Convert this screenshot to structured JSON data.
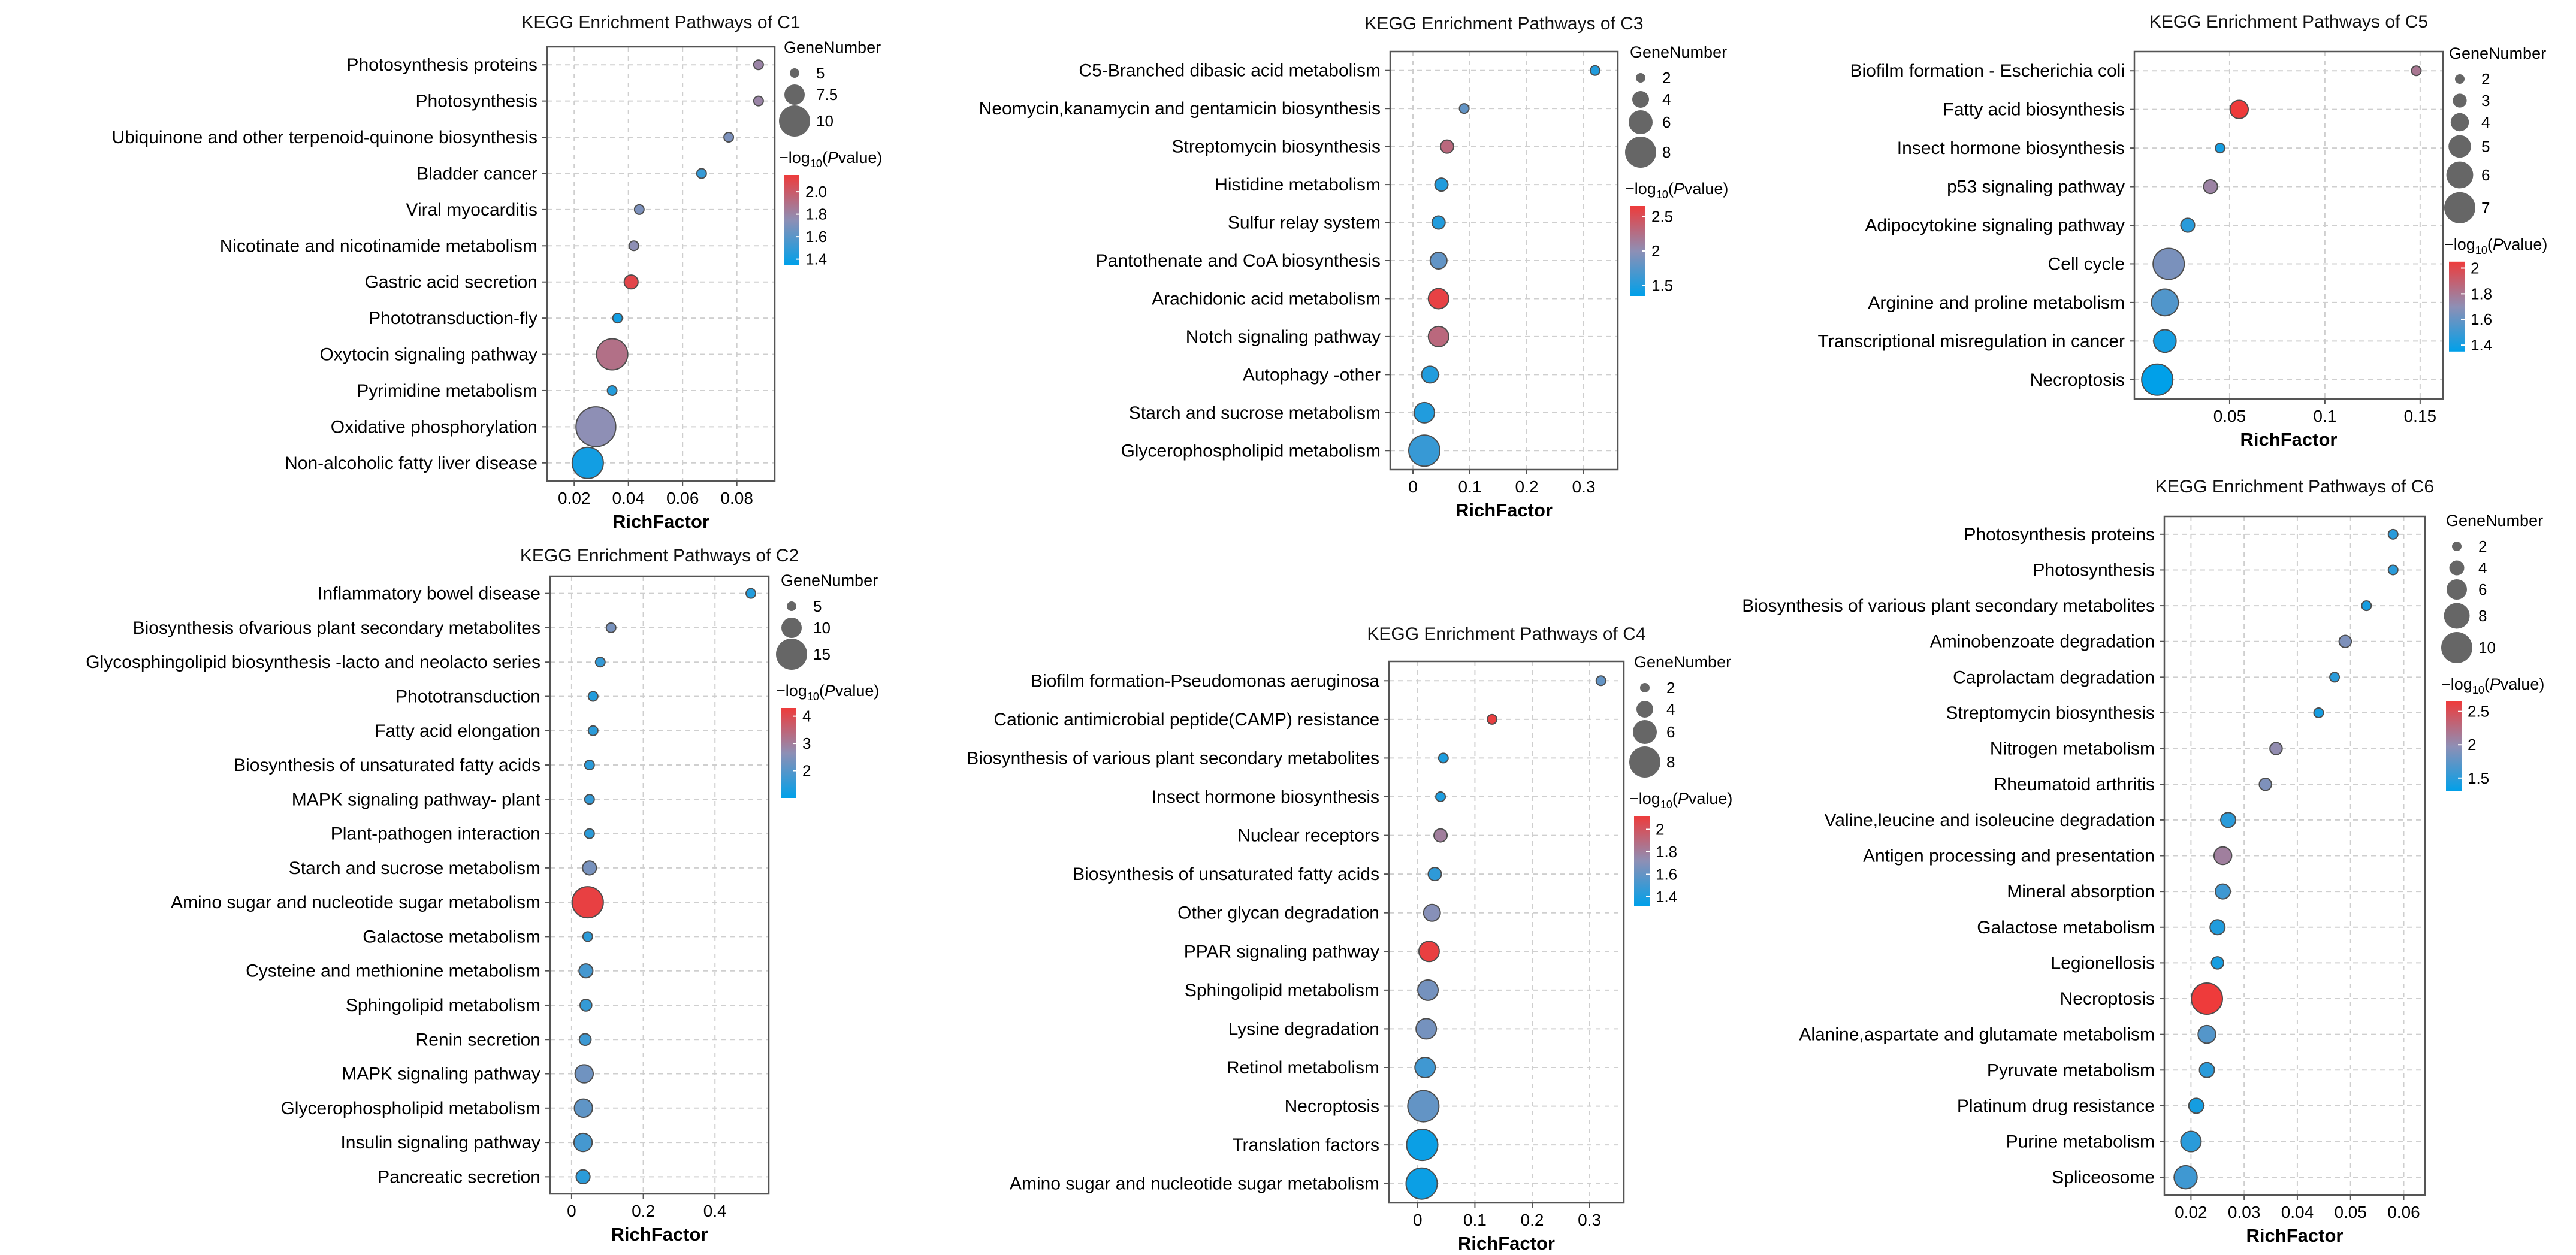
{
  "colors": {
    "low": "#00a0e9",
    "mid": "#8e8fb5",
    "high": "#ee3b3b",
    "size_legend": "#666666"
  },
  "legend_labels": {
    "size_title": "GeneNumber",
    "color_title_prefix": "−log",
    "color_title_sub": "10",
    "color_title_open": "(",
    "color_title_italic": "P",
    "color_title_rest": "value)"
  },
  "chart_data": [
    {
      "id": "C1",
      "type": "scatter",
      "title": "KEGG Enrichment Pathways of C1",
      "xlabel": "RichFactor",
      "xlim": [
        0.01,
        0.094
      ],
      "xticks": [
        0.02,
        0.04,
        0.06,
        0.08
      ],
      "xtick_labels": [
        "0.02",
        "0.04",
        "0.06",
        "0.08"
      ],
      "size_legend": {
        "values": [
          5,
          7.5,
          10
        ],
        "labels": [
          "5",
          "7.5",
          "10"
        ]
      },
      "color_legend": {
        "min": 1.35,
        "max": 2.15,
        "ticks": [
          2.0,
          1.8,
          1.6,
          1.4
        ],
        "labels": [
          "2.0",
          "1.8",
          "1.6",
          "1.4"
        ]
      },
      "pathways": [
        {
          "name": "Photosynthesis proteins",
          "rich": 0.088,
          "genes": 2,
          "logp": 1.8
        },
        {
          "name": "Photosynthesis",
          "rich": 0.088,
          "genes": 2,
          "logp": 1.8
        },
        {
          "name": "Ubiquinone and other terpenoid-quinone biosynthesis",
          "rich": 0.077,
          "genes": 2,
          "logp": 1.7
        },
        {
          "name": "Bladder cancer",
          "rich": 0.067,
          "genes": 2,
          "logp": 1.5
        },
        {
          "name": "Viral myocarditis",
          "rich": 0.044,
          "genes": 4,
          "logp": 1.7
        },
        {
          "name": "Nicotinate and nicotinamide metabolism",
          "rich": 0.042,
          "genes": 4,
          "logp": 1.75
        },
        {
          "name": "Gastric acid secretion",
          "rich": 0.041,
          "genes": 6,
          "logp": 2.1
        },
        {
          "name": "Phototransduction-fly",
          "rich": 0.036,
          "genes": 5,
          "logp": 1.4
        },
        {
          "name": "Oxytocin signaling pathway",
          "rich": 0.034,
          "genes": 10,
          "logp": 1.9
        },
        {
          "name": "Pyrimidine metabolism",
          "rich": 0.034,
          "genes": 5,
          "logp": 1.45
        },
        {
          "name": "Oxidative phosphorylation",
          "rich": 0.028,
          "genes": 12,
          "logp": 1.75
        },
        {
          "name": "Non-alcoholic fatty liver disease",
          "rich": 0.025,
          "genes": 10,
          "logp": 1.4
        }
      ]
    },
    {
      "id": "C2",
      "type": "scatter",
      "title": "KEGG Enrichment Pathways of C2",
      "xlabel": "RichFactor",
      "xlim": [
        -0.06,
        0.55
      ],
      "xticks": [
        0,
        0.2,
        0.4
      ],
      "xtick_labels": [
        "0",
        "0.2",
        "0.4"
      ],
      "size_legend": {
        "values": [
          5,
          10,
          15
        ],
        "labels": [
          "5",
          "10",
          "15"
        ]
      },
      "color_legend": {
        "min": 1.0,
        "max": 4.3,
        "ticks": [
          4,
          3,
          2
        ],
        "labels": [
          "4",
          "3",
          "2"
        ]
      },
      "pathways": [
        {
          "name": "Inflammatory bowel disease",
          "rich": 0.5,
          "genes": 2,
          "logp": 1.4
        },
        {
          "name": "Biosynthesis ofvarious plant secondary metabolites",
          "rich": 0.11,
          "genes": 3,
          "logp": 2.4
        },
        {
          "name": "Glycosphingolipid biosynthesis -lacto and neolacto series",
          "rich": 0.08,
          "genes": 2,
          "logp": 1.6
        },
        {
          "name": "Phototransduction",
          "rich": 0.06,
          "genes": 3,
          "logp": 1.4
        },
        {
          "name": "Fatty acid elongation",
          "rich": 0.06,
          "genes": 3,
          "logp": 1.5
        },
        {
          "name": "Biosynthesis of unsaturated fatty acids",
          "rich": 0.05,
          "genes": 4,
          "logp": 1.5
        },
        {
          "name": "MAPK signaling pathway- plant",
          "rich": 0.05,
          "genes": 4,
          "logp": 1.6
        },
        {
          "name": "Plant-pathogen interaction",
          "rich": 0.05,
          "genes": 4,
          "logp": 1.5
        },
        {
          "name": "Starch and sucrose metabolism",
          "rich": 0.05,
          "genes": 7,
          "logp": 2.4
        },
        {
          "name": "Amino sugar and nucleotide sugar metabolism",
          "rich": 0.045,
          "genes": 15,
          "logp": 4.2
        },
        {
          "name": "Galactose metabolism",
          "rich": 0.045,
          "genes": 5,
          "logp": 1.5
        },
        {
          "name": "Cysteine and methionine metabolism",
          "rich": 0.04,
          "genes": 7,
          "logp": 1.8
        },
        {
          "name": "Sphingolipid metabolism",
          "rich": 0.04,
          "genes": 6,
          "logp": 1.6
        },
        {
          "name": "Renin secretion",
          "rich": 0.038,
          "genes": 6,
          "logp": 1.7
        },
        {
          "name": "MAPK signaling pathway",
          "rich": 0.035,
          "genes": 9,
          "logp": 2.3
        },
        {
          "name": "Glycerophospholipid metabolism",
          "rich": 0.033,
          "genes": 9,
          "logp": 2.1
        },
        {
          "name": "Insulin signaling pathway",
          "rich": 0.032,
          "genes": 9,
          "logp": 1.8
        },
        {
          "name": "Pancreatic secretion",
          "rich": 0.032,
          "genes": 7,
          "logp": 1.5
        }
      ]
    },
    {
      "id": "C3",
      "type": "scatter",
      "title": "KEGG Enrichment Pathways of C3",
      "xlabel": "RichFactor",
      "xlim": [
        -0.04,
        0.36
      ],
      "xticks": [
        0,
        0.1,
        0.2,
        0.3
      ],
      "xtick_labels": [
        "0",
        "0.1",
        "0.2",
        "0.3"
      ],
      "size_legend": {
        "values": [
          2,
          4,
          6,
          8
        ],
        "labels": [
          "2",
          "4",
          "6",
          "8"
        ]
      },
      "color_legend": {
        "min": 1.35,
        "max": 2.65,
        "ticks": [
          2.5,
          2,
          1.5
        ],
        "labels": [
          "2.5",
          "2",
          "1.5"
        ]
      },
      "pathways": [
        {
          "name": "C5-Branched dibasic acid metabolism",
          "rich": 0.32,
          "genes": 2,
          "logp": 1.5
        },
        {
          "name": "Neomycin,kanamycin and gentamicin biosynthesis",
          "rich": 0.09,
          "genes": 2,
          "logp": 1.8
        },
        {
          "name": "Streptomycin biosynthesis",
          "rich": 0.06,
          "genes": 3,
          "logp": 2.3
        },
        {
          "name": "Histidine metabolism",
          "rich": 0.05,
          "genes": 3,
          "logp": 1.5
        },
        {
          "name": "Sulfur relay system",
          "rich": 0.045,
          "genes": 3,
          "logp": 1.5
        },
        {
          "name": "Pantothenate and CoA biosynthesis",
          "rich": 0.045,
          "genes": 4,
          "logp": 1.8
        },
        {
          "name": "Arachidonic acid metabolism",
          "rich": 0.045,
          "genes": 5,
          "logp": 2.6
        },
        {
          "name": "Notch signaling pathway",
          "rich": 0.045,
          "genes": 5,
          "logp": 2.3
        },
        {
          "name": "Autophagy -other",
          "rich": 0.03,
          "genes": 4,
          "logp": 1.5
        },
        {
          "name": "Starch and sucrose metabolism",
          "rich": 0.02,
          "genes": 5,
          "logp": 1.5
        },
        {
          "name": "Glycerophospholipid metabolism",
          "rich": 0.02,
          "genes": 8,
          "logp": 1.6
        }
      ]
    },
    {
      "id": "C4",
      "type": "scatter",
      "title": "KEGG Enrichment Pathways of C4",
      "xlabel": "RichFactor",
      "xlim": [
        -0.05,
        0.36
      ],
      "xticks": [
        0,
        0.1,
        0.2,
        0.3
      ],
      "xtick_labels": [
        "0",
        "0.1",
        "0.2",
        "0.3"
      ],
      "size_legend": {
        "values": [
          2,
          4,
          6,
          8
        ],
        "labels": [
          "2",
          "4",
          "6",
          "8"
        ]
      },
      "color_legend": {
        "min": 1.32,
        "max": 2.12,
        "ticks": [
          2,
          1.8,
          1.6,
          1.4
        ],
        "labels": [
          "2",
          "1.8",
          "1.6",
          "1.4"
        ]
      },
      "pathways": [
        {
          "name": "Biofilm formation-Pseudomonas aeruginosa",
          "rich": 0.32,
          "genes": 2,
          "logp": 1.6
        },
        {
          "name": "Cationic antimicrobial peptide(CAMP) resistance",
          "rich": 0.13,
          "genes": 2,
          "logp": 2.1
        },
        {
          "name": "Biosynthesis of various plant secondary metabolites",
          "rich": 0.045,
          "genes": 2,
          "logp": 1.4
        },
        {
          "name": "Insect hormone biosynthesis",
          "rich": 0.04,
          "genes": 2,
          "logp": 1.4
        },
        {
          "name": "Nuclear receptors",
          "rich": 0.04,
          "genes": 3,
          "logp": 1.8
        },
        {
          "name": "Biosynthesis of unsaturated fatty acids",
          "rich": 0.03,
          "genes": 3,
          "logp": 1.45
        },
        {
          "name": "Other glycan degradation",
          "rich": 0.025,
          "genes": 4,
          "logp": 1.7
        },
        {
          "name": "PPAR signaling pathway",
          "rich": 0.02,
          "genes": 5,
          "logp": 2.1
        },
        {
          "name": "Sphingolipid metabolism",
          "rich": 0.018,
          "genes": 5,
          "logp": 1.65
        },
        {
          "name": "Lysine degradation",
          "rich": 0.015,
          "genes": 5,
          "logp": 1.65
        },
        {
          "name": "Retinol metabolism",
          "rich": 0.013,
          "genes": 5,
          "logp": 1.5
        },
        {
          "name": "Necroptosis",
          "rich": 0.01,
          "genes": 8,
          "logp": 1.6
        },
        {
          "name": "Translation factors",
          "rich": 0.008,
          "genes": 8,
          "logp": 1.35
        },
        {
          "name": "Amino sugar and nucleotide sugar metabolism",
          "rich": 0.007,
          "genes": 8,
          "logp": 1.35
        }
      ]
    },
    {
      "id": "C5",
      "type": "scatter",
      "title": "KEGG Enrichment Pathways of C5",
      "xlabel": "RichFactor",
      "xlim": [
        0.0,
        0.162
      ],
      "xticks": [
        0.05,
        0.1,
        0.15
      ],
      "xtick_labels": [
        "0.05",
        "0.1",
        "0.15"
      ],
      "size_legend": {
        "values": [
          2,
          3,
          4,
          5,
          6,
          7
        ],
        "labels": [
          "2",
          "3",
          "4",
          "5",
          "6",
          "7"
        ]
      },
      "color_legend": {
        "min": 1.35,
        "max": 2.05,
        "ticks": [
          2,
          1.8,
          1.6,
          1.4
        ],
        "labels": [
          "2",
          "1.8",
          "1.6",
          "1.4"
        ]
      },
      "pathways": [
        {
          "name": "Biofilm formation - Escherichia coli",
          "rich": 0.148,
          "genes": 2,
          "logp": 1.8
        },
        {
          "name": "Fatty acid biosynthesis",
          "rich": 0.055,
          "genes": 4,
          "logp": 2.05
        },
        {
          "name": "Insect hormone biosynthesis",
          "rich": 0.045,
          "genes": 2,
          "logp": 1.4
        },
        {
          "name": "p53 signaling pathway",
          "rich": 0.04,
          "genes": 3,
          "logp": 1.75
        },
        {
          "name": "Adipocytokine signaling pathway",
          "rich": 0.028,
          "genes": 3,
          "logp": 1.45
        },
        {
          "name": "Cell cycle",
          "rich": 0.018,
          "genes": 7,
          "logp": 1.65
        },
        {
          "name": "Arginine and proline metabolism",
          "rich": 0.016,
          "genes": 6,
          "logp": 1.55
        },
        {
          "name": "Transcriptional misregulation in cancer",
          "rich": 0.016,
          "genes": 5,
          "logp": 1.4
        },
        {
          "name": "Necroptosis",
          "rich": 0.012,
          "genes": 7,
          "logp": 1.35
        }
      ]
    },
    {
      "id": "C6",
      "type": "scatter",
      "title": "KEGG Enrichment Pathways of C6",
      "xlabel": "RichFactor",
      "xlim": [
        0.015,
        0.064
      ],
      "xticks": [
        0.02,
        0.03,
        0.04,
        0.05,
        0.06
      ],
      "xtick_labels": [
        "0.02",
        "0.03",
        "0.04",
        "0.05",
        "0.06"
      ],
      "size_legend": {
        "values": [
          2,
          4,
          6,
          8,
          10
        ],
        "labels": [
          "2",
          "4",
          "6",
          "8",
          "10"
        ]
      },
      "color_legend": {
        "min": 1.3,
        "max": 2.65,
        "ticks": [
          2.5,
          2,
          1.5
        ],
        "labels": [
          "2.5",
          "2",
          "1.5"
        ]
      },
      "pathways": [
        {
          "name": "Photosynthesis proteins",
          "rich": 0.058,
          "genes": 2,
          "logp": 1.5
        },
        {
          "name": "Photosynthesis",
          "rich": 0.058,
          "genes": 2,
          "logp": 1.5
        },
        {
          "name": "Biosynthesis of various plant secondary metabolites",
          "rich": 0.053,
          "genes": 2,
          "logp": 1.4
        },
        {
          "name": "Aminobenzoate degradation",
          "rich": 0.049,
          "genes": 3,
          "logp": 1.9
        },
        {
          "name": "Caprolactam degradation",
          "rich": 0.047,
          "genes": 2,
          "logp": 1.5
        },
        {
          "name": "Streptomycin biosynthesis",
          "rich": 0.044,
          "genes": 2,
          "logp": 1.4
        },
        {
          "name": "Nitrogen metabolism",
          "rich": 0.036,
          "genes": 3,
          "logp": 2.0
        },
        {
          "name": "Rheumatoid arthritis",
          "rich": 0.034,
          "genes": 3,
          "logp": 1.9
        },
        {
          "name": "Valine,leucine and isoleucine degradation",
          "rich": 0.027,
          "genes": 4,
          "logp": 1.5
        },
        {
          "name": "Antigen processing and presentation",
          "rich": 0.026,
          "genes": 5,
          "logp": 2.1
        },
        {
          "name": "Mineral absorption",
          "rich": 0.026,
          "genes": 4,
          "logp": 1.6
        },
        {
          "name": "Galactose metabolism",
          "rich": 0.025,
          "genes": 4,
          "logp": 1.45
        },
        {
          "name": "Legionellosis",
          "rich": 0.025,
          "genes": 3,
          "logp": 1.4
        },
        {
          "name": "Necroptosis",
          "rich": 0.023,
          "genes": 10,
          "logp": 2.7
        },
        {
          "name": "Alanine,aspartate and glutamate metabolism",
          "rich": 0.023,
          "genes": 5,
          "logp": 1.7
        },
        {
          "name": "Pyruvate metabolism",
          "rich": 0.023,
          "genes": 4,
          "logp": 1.5
        },
        {
          "name": "Platinum drug resistance",
          "rich": 0.021,
          "genes": 4,
          "logp": 1.4
        },
        {
          "name": "Purine metabolism",
          "rich": 0.02,
          "genes": 6,
          "logp": 1.5
        },
        {
          "name": "Spliceosome",
          "rich": 0.019,
          "genes": 7,
          "logp": 1.6
        }
      ]
    }
  ]
}
